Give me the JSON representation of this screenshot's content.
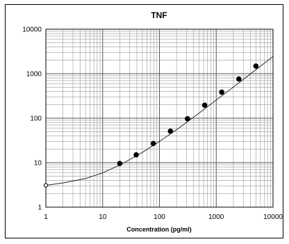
{
  "chart_data": {
    "type": "scatter",
    "title": "TNF",
    "xlabel": "Concentration   (pg/ml)",
    "ylabel": "",
    "x_scale": "log",
    "y_scale": "log",
    "xlim": [
      1,
      10000
    ],
    "ylim": [
      1,
      10000
    ],
    "x_ticks": [
      "1",
      "10",
      "100",
      "1000",
      "10000"
    ],
    "y_ticks": [
      "1",
      "10",
      "100",
      "1000",
      "10000"
    ],
    "grid": true,
    "legend": "none",
    "series": [
      {
        "marker": "filled-circle",
        "x": [
          20,
          39,
          78,
          156,
          312,
          625,
          1250,
          2500,
          5000
        ],
        "y": [
          9.6,
          15,
          27,
          51,
          97,
          196,
          385,
          760,
          1480
        ]
      },
      {
        "marker": "open-circle",
        "x": [
          1
        ],
        "y": [
          3.1
        ]
      }
    ],
    "fit_curve": {
      "x": [
        1,
        2,
        5,
        10,
        20,
        50,
        100,
        200,
        500,
        1000,
        2000,
        5000,
        10000
      ],
      "y": [
        3.1,
        3.5,
        4.4,
        5.9,
        8.8,
        17,
        30,
        55,
        130,
        255,
        500,
        1230,
        2440
      ]
    },
    "colors": {
      "line": "#000000",
      "grid": "#999999",
      "background": "#ffffff"
    }
  }
}
